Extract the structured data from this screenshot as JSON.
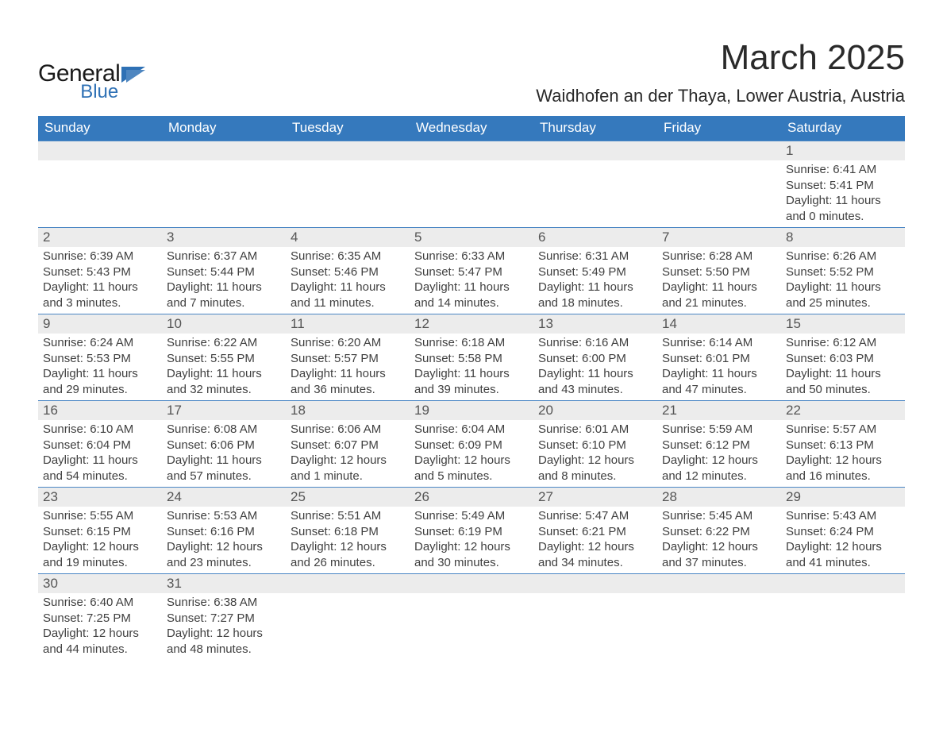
{
  "brand": {
    "word1": "General",
    "word2": "Blue",
    "word1_color": "#1a1a1a",
    "word2_color": "#2f71b5",
    "shape_color": "#2f71b5"
  },
  "title": "March 2025",
  "subtitle": "Waidhofen an der Thaya, Lower Austria, Austria",
  "colors": {
    "header_bg": "#3579bd",
    "header_text": "#ffffff",
    "daynum_bg": "#ececec",
    "row_border": "#4a86c4",
    "body_text": "#404040",
    "page_bg": "#ffffff"
  },
  "fontsize": {
    "title": 44,
    "subtitle": 22,
    "dayhead": 17,
    "daynum": 17,
    "detail": 15
  },
  "day_headers": [
    "Sunday",
    "Monday",
    "Tuesday",
    "Wednesday",
    "Thursday",
    "Friday",
    "Saturday"
  ],
  "weeks": [
    [
      {
        "n": "",
        "sr": "",
        "ss": "",
        "dl": ""
      },
      {
        "n": "",
        "sr": "",
        "ss": "",
        "dl": ""
      },
      {
        "n": "",
        "sr": "",
        "ss": "",
        "dl": ""
      },
      {
        "n": "",
        "sr": "",
        "ss": "",
        "dl": ""
      },
      {
        "n": "",
        "sr": "",
        "ss": "",
        "dl": ""
      },
      {
        "n": "",
        "sr": "",
        "ss": "",
        "dl": ""
      },
      {
        "n": "1",
        "sr": "Sunrise: 6:41 AM",
        "ss": "Sunset: 5:41 PM",
        "dl": "Daylight: 11 hours and 0 minutes."
      }
    ],
    [
      {
        "n": "2",
        "sr": "Sunrise: 6:39 AM",
        "ss": "Sunset: 5:43 PM",
        "dl": "Daylight: 11 hours and 3 minutes."
      },
      {
        "n": "3",
        "sr": "Sunrise: 6:37 AM",
        "ss": "Sunset: 5:44 PM",
        "dl": "Daylight: 11 hours and 7 minutes."
      },
      {
        "n": "4",
        "sr": "Sunrise: 6:35 AM",
        "ss": "Sunset: 5:46 PM",
        "dl": "Daylight: 11 hours and 11 minutes."
      },
      {
        "n": "5",
        "sr": "Sunrise: 6:33 AM",
        "ss": "Sunset: 5:47 PM",
        "dl": "Daylight: 11 hours and 14 minutes."
      },
      {
        "n": "6",
        "sr": "Sunrise: 6:31 AM",
        "ss": "Sunset: 5:49 PM",
        "dl": "Daylight: 11 hours and 18 minutes."
      },
      {
        "n": "7",
        "sr": "Sunrise: 6:28 AM",
        "ss": "Sunset: 5:50 PM",
        "dl": "Daylight: 11 hours and 21 minutes."
      },
      {
        "n": "8",
        "sr": "Sunrise: 6:26 AM",
        "ss": "Sunset: 5:52 PM",
        "dl": "Daylight: 11 hours and 25 minutes."
      }
    ],
    [
      {
        "n": "9",
        "sr": "Sunrise: 6:24 AM",
        "ss": "Sunset: 5:53 PM",
        "dl": "Daylight: 11 hours and 29 minutes."
      },
      {
        "n": "10",
        "sr": "Sunrise: 6:22 AM",
        "ss": "Sunset: 5:55 PM",
        "dl": "Daylight: 11 hours and 32 minutes."
      },
      {
        "n": "11",
        "sr": "Sunrise: 6:20 AM",
        "ss": "Sunset: 5:57 PM",
        "dl": "Daylight: 11 hours and 36 minutes."
      },
      {
        "n": "12",
        "sr": "Sunrise: 6:18 AM",
        "ss": "Sunset: 5:58 PM",
        "dl": "Daylight: 11 hours and 39 minutes."
      },
      {
        "n": "13",
        "sr": "Sunrise: 6:16 AM",
        "ss": "Sunset: 6:00 PM",
        "dl": "Daylight: 11 hours and 43 minutes."
      },
      {
        "n": "14",
        "sr": "Sunrise: 6:14 AM",
        "ss": "Sunset: 6:01 PM",
        "dl": "Daylight: 11 hours and 47 minutes."
      },
      {
        "n": "15",
        "sr": "Sunrise: 6:12 AM",
        "ss": "Sunset: 6:03 PM",
        "dl": "Daylight: 11 hours and 50 minutes."
      }
    ],
    [
      {
        "n": "16",
        "sr": "Sunrise: 6:10 AM",
        "ss": "Sunset: 6:04 PM",
        "dl": "Daylight: 11 hours and 54 minutes."
      },
      {
        "n": "17",
        "sr": "Sunrise: 6:08 AM",
        "ss": "Sunset: 6:06 PM",
        "dl": "Daylight: 11 hours and 57 minutes."
      },
      {
        "n": "18",
        "sr": "Sunrise: 6:06 AM",
        "ss": "Sunset: 6:07 PM",
        "dl": "Daylight: 12 hours and 1 minute."
      },
      {
        "n": "19",
        "sr": "Sunrise: 6:04 AM",
        "ss": "Sunset: 6:09 PM",
        "dl": "Daylight: 12 hours and 5 minutes."
      },
      {
        "n": "20",
        "sr": "Sunrise: 6:01 AM",
        "ss": "Sunset: 6:10 PM",
        "dl": "Daylight: 12 hours and 8 minutes."
      },
      {
        "n": "21",
        "sr": "Sunrise: 5:59 AM",
        "ss": "Sunset: 6:12 PM",
        "dl": "Daylight: 12 hours and 12 minutes."
      },
      {
        "n": "22",
        "sr": "Sunrise: 5:57 AM",
        "ss": "Sunset: 6:13 PM",
        "dl": "Daylight: 12 hours and 16 minutes."
      }
    ],
    [
      {
        "n": "23",
        "sr": "Sunrise: 5:55 AM",
        "ss": "Sunset: 6:15 PM",
        "dl": "Daylight: 12 hours and 19 minutes."
      },
      {
        "n": "24",
        "sr": "Sunrise: 5:53 AM",
        "ss": "Sunset: 6:16 PM",
        "dl": "Daylight: 12 hours and 23 minutes."
      },
      {
        "n": "25",
        "sr": "Sunrise: 5:51 AM",
        "ss": "Sunset: 6:18 PM",
        "dl": "Daylight: 12 hours and 26 minutes."
      },
      {
        "n": "26",
        "sr": "Sunrise: 5:49 AM",
        "ss": "Sunset: 6:19 PM",
        "dl": "Daylight: 12 hours and 30 minutes."
      },
      {
        "n": "27",
        "sr": "Sunrise: 5:47 AM",
        "ss": "Sunset: 6:21 PM",
        "dl": "Daylight: 12 hours and 34 minutes."
      },
      {
        "n": "28",
        "sr": "Sunrise: 5:45 AM",
        "ss": "Sunset: 6:22 PM",
        "dl": "Daylight: 12 hours and 37 minutes."
      },
      {
        "n": "29",
        "sr": "Sunrise: 5:43 AM",
        "ss": "Sunset: 6:24 PM",
        "dl": "Daylight: 12 hours and 41 minutes."
      }
    ],
    [
      {
        "n": "30",
        "sr": "Sunrise: 6:40 AM",
        "ss": "Sunset: 7:25 PM",
        "dl": "Daylight: 12 hours and 44 minutes."
      },
      {
        "n": "31",
        "sr": "Sunrise: 6:38 AM",
        "ss": "Sunset: 7:27 PM",
        "dl": "Daylight: 12 hours and 48 minutes."
      },
      {
        "n": "",
        "sr": "",
        "ss": "",
        "dl": ""
      },
      {
        "n": "",
        "sr": "",
        "ss": "",
        "dl": ""
      },
      {
        "n": "",
        "sr": "",
        "ss": "",
        "dl": ""
      },
      {
        "n": "",
        "sr": "",
        "ss": "",
        "dl": ""
      },
      {
        "n": "",
        "sr": "",
        "ss": "",
        "dl": ""
      }
    ]
  ]
}
